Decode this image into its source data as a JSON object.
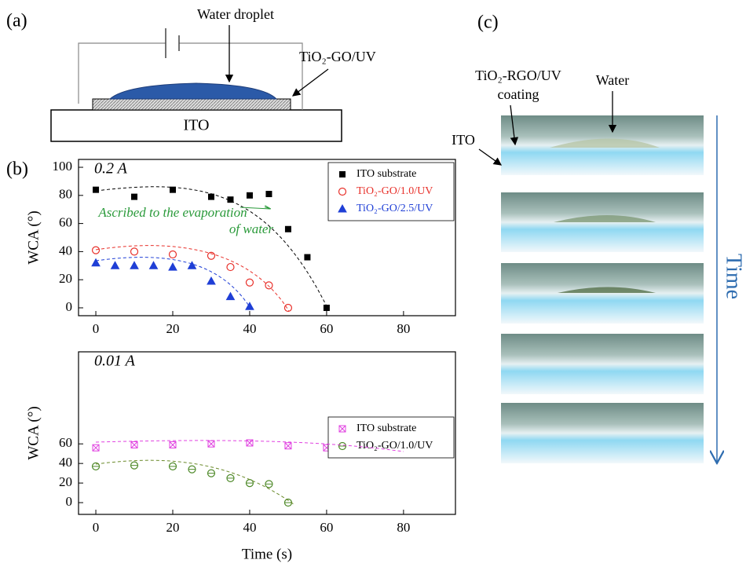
{
  "figure": {
    "panel_a": {
      "label": "(a)",
      "droplet": "Water droplet",
      "coating": "TiO₂-GO/UV",
      "substrate": "ITO"
    },
    "panel_b": {
      "label": "(b)"
    },
    "panel_c": {
      "label": "(c)",
      "coating_lines": [
        "TiO₂-RGO/UV",
        "coating"
      ],
      "water": "Water",
      "substrate": "ITO",
      "time": "Time"
    }
  },
  "chart_data": [
    {
      "type": "scatter",
      "annotation": "0.2 A",
      "note_lines": [
        "Ascribed to the evaporation",
        "of water"
      ],
      "ylabel": "WCA (°)",
      "xlim": [
        -4.5,
        93.5
      ],
      "ylim": [
        -5.6,
        105.6
      ],
      "xticks": [
        0,
        20,
        40,
        60,
        80
      ],
      "yticks": [
        0,
        20,
        40,
        60,
        80,
        100
      ],
      "legend": "upper right",
      "series": [
        {
          "name": "ITO substrate",
          "color": "#000000",
          "marker": "square",
          "x": [
            0,
            10,
            20,
            30,
            35,
            40,
            45,
            50,
            55,
            60
          ],
          "values": [
            84,
            79,
            84,
            79,
            77,
            80,
            81,
            56,
            36,
            0
          ]
        },
        {
          "name": "TiO₂-GO/1.0/UV",
          "color": "#e8302a",
          "marker": "circle",
          "x": [
            0,
            10,
            20,
            30,
            35,
            40,
            45,
            50
          ],
          "values": [
            41,
            40,
            38,
            37,
            29,
            18,
            16,
            0
          ]
        },
        {
          "name": "TiO₂-GO/2.5/UV",
          "color": "#1f3fd6",
          "marker": "triangle",
          "x": [
            0,
            5,
            10,
            15,
            20,
            25,
            30,
            35,
            40
          ],
          "values": [
            32,
            30,
            30,
            30,
            29,
            30,
            19,
            8,
            1
          ]
        }
      ]
    },
    {
      "type": "scatter",
      "annotation": "0.01 A",
      "xlabel": "Time (s)",
      "ylabel": "WCA (°)",
      "xlim": [
        -4.5,
        93.5
      ],
      "ylim": [
        -12,
        154
      ],
      "xticks": [
        0,
        20,
        40,
        60,
        80
      ],
      "yticks": [
        0,
        20,
        40,
        60
      ],
      "legend": "lower right",
      "series": [
        {
          "name": "ITO substrate",
          "color": "#e040e0",
          "marker": "square-x",
          "x": [
            0,
            10,
            20,
            30,
            40,
            50,
            60,
            70,
            80
          ],
          "values": [
            56,
            59,
            59,
            60,
            61,
            58,
            56,
            54,
            52
          ]
        },
        {
          "name": "TiO₂-GO/1.0/UV",
          "color": "#4f8a2a",
          "marker": "circle-bar",
          "x": [
            0,
            10,
            20,
            25,
            30,
            35,
            40,
            45,
            50
          ],
          "values": [
            37,
            38,
            37,
            34,
            30,
            25,
            20,
            19,
            0
          ]
        }
      ]
    }
  ]
}
